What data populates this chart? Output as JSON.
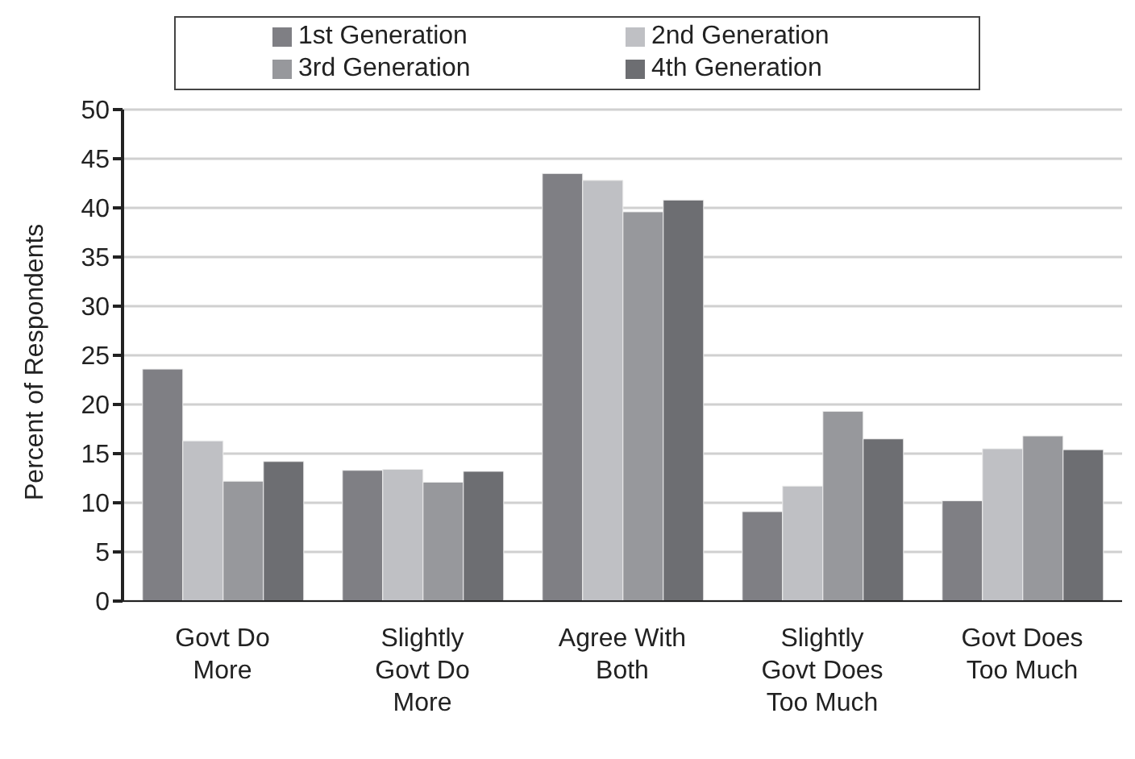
{
  "chart_data": {
    "type": "bar",
    "ylabel": "Percent of Respondents",
    "categories": [
      "Govt Do More",
      "Slightly Govt Do More",
      "Agree With Both",
      "Slightly Govt Does Too Much",
      "Govt Does Too Much"
    ],
    "series": [
      {
        "name": "1st Generation",
        "color": "#7f7f84",
        "values": [
          23.6,
          13.3,
          43.5,
          9.1,
          10.2
        ]
      },
      {
        "name": "2nd Generation",
        "color": "#bfc0c4",
        "values": [
          16.3,
          13.4,
          42.8,
          11.7,
          15.5
        ]
      },
      {
        "name": "3rd Generation",
        "color": "#97989c",
        "values": [
          12.2,
          12.1,
          39.6,
          19.3,
          16.8
        ]
      },
      {
        "name": "4th Generation",
        "color": "#6d6e72",
        "values": [
          14.2,
          13.2,
          40.8,
          16.5,
          15.4
        ]
      }
    ],
    "ylim": [
      0,
      50
    ],
    "yticks": [
      0,
      5,
      10,
      15,
      20,
      25,
      30,
      35,
      40,
      45,
      50
    ],
    "grid": "y",
    "legend": "top"
  }
}
